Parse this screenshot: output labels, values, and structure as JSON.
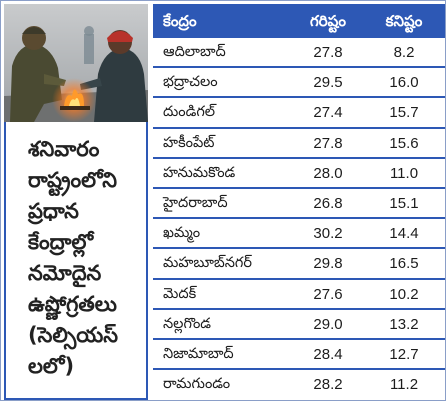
{
  "caption": {
    "lines": [
      "శనివారం",
      "రాష్ట్రంలోని",
      "ప్రధాన",
      "కేంద్రాల్లో",
      "నమోదైన",
      "ఉష్ణోగ్రతలు",
      "(సెల్సియస్",
      "లలో)"
    ]
  },
  "table": {
    "headers": {
      "center": "కేంద్రం",
      "max": "గరిష్టం",
      "min": "కనిష్టం"
    },
    "rows": [
      {
        "name": "ఆదిలాబాద్",
        "max": "27.8",
        "min": "8.2"
      },
      {
        "name": "భద్రాచలం",
        "max": "29.5",
        "min": "16.0"
      },
      {
        "name": "దుండిగల్",
        "max": "27.4",
        "min": "15.7"
      },
      {
        "name": "హకీంపేట్",
        "max": "27.8",
        "min": "15.6"
      },
      {
        "name": "హనుమకొండ",
        "max": "28.0",
        "min": "11.0"
      },
      {
        "name": "హైదరాబాద్",
        "max": "26.8",
        "min": "15.1"
      },
      {
        "name": "ఖమ్మం",
        "max": "30.2",
        "min": "14.4"
      },
      {
        "name": "మహబూబ్‌నగర్",
        "max": "29.8",
        "min": "16.5"
      },
      {
        "name": "మెదక్",
        "max": "27.6",
        "min": "10.2"
      },
      {
        "name": "నల్లగొండ",
        "max": "29.0",
        "min": "13.2"
      },
      {
        "name": "నిజామాబాద్",
        "max": "28.4",
        "min": "12.7"
      },
      {
        "name": "రామగుండం",
        "max": "28.2",
        "min": "11.2"
      }
    ]
  },
  "colors": {
    "accent": "#2d58b5",
    "header_text": "#ffffff"
  }
}
